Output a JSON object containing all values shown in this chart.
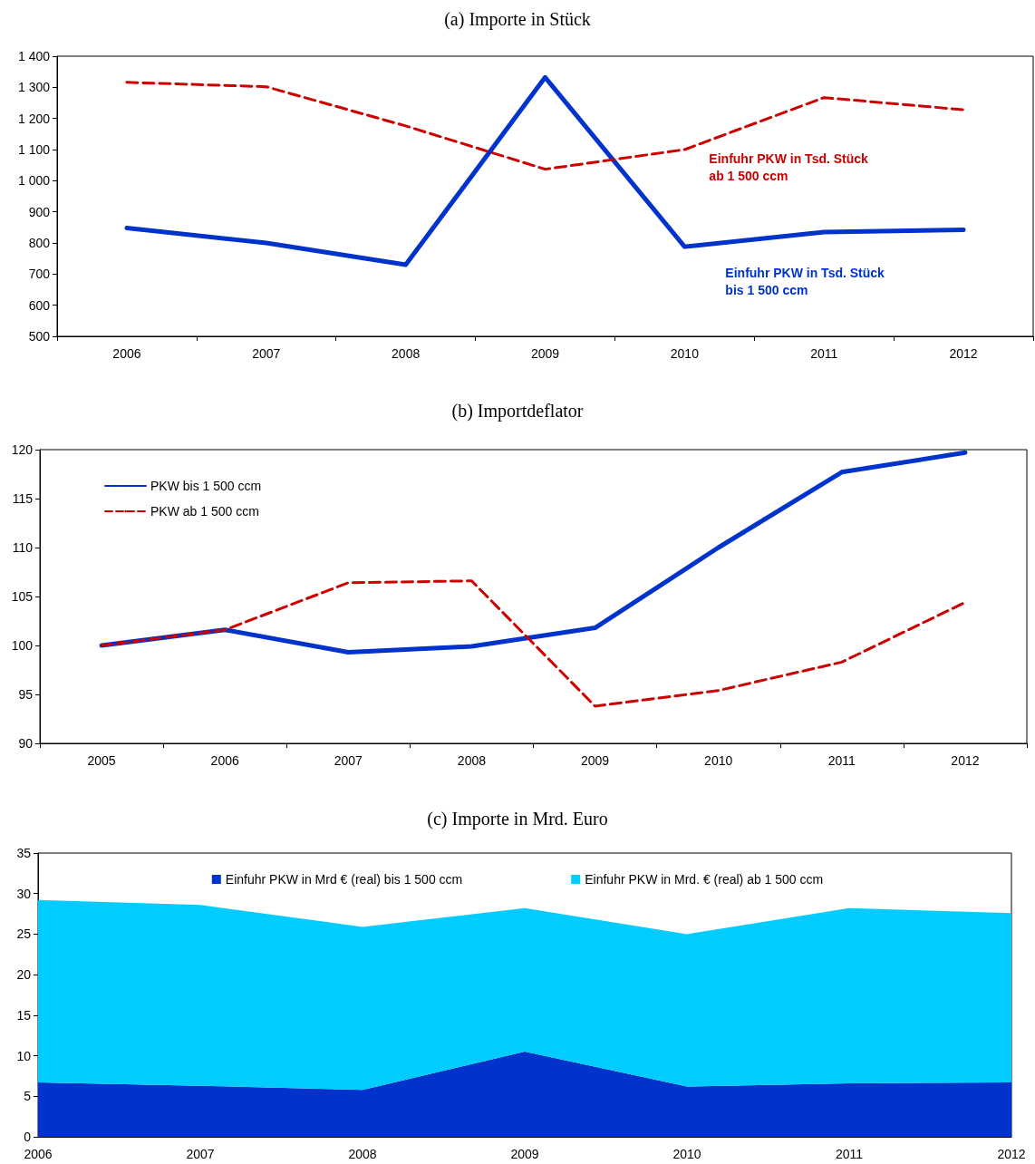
{
  "chart_data": [
    {
      "type": "line",
      "title": "(a) Importe in Stück",
      "categories": [
        "2006",
        "2007",
        "2008",
        "2009",
        "2010",
        "2011",
        "2012"
      ],
      "series": [
        {
          "name": "Einfuhr PKW in Tsd. Stück bis 1 500 ccm",
          "color": "#0033cc",
          "line_style": "solid",
          "values": [
            848,
            800,
            730,
            1332,
            788,
            835,
            842
          ]
        },
        {
          "name": "Einfuhr PKW in Tsd. Stück ab 1 500 ccm",
          "color": "#cc0000",
          "line_style": "dashed",
          "values": [
            1316,
            1302,
            1176,
            1037,
            1100,
            1267,
            1228
          ]
        }
      ],
      "ylim": [
        500,
        1400
      ],
      "yticks": [
        500,
        600,
        700,
        800,
        900,
        {
          "value": 1000,
          "label": "1 000"
        },
        {
          "value": 1100,
          "label": "1 100"
        },
        {
          "value": 1200,
          "label": "1 200"
        },
        {
          "value": 1300,
          "label": "1 300"
        },
        {
          "value": 1400,
          "label": "1 400"
        }
      ],
      "grid": false,
      "legend": false,
      "marker": "none"
    },
    {
      "type": "line",
      "title": "(b) Importdeflator",
      "categories": [
        "2005",
        "2006",
        "2007",
        "2008",
        "2009",
        "2010",
        "2011",
        "2012"
      ],
      "series": [
        {
          "name": "PKW bis 1 500 ccm",
          "color": "#0033cc",
          "line_style": "solid",
          "values": [
            100,
            101.6,
            99.3,
            99.9,
            101.8,
            110,
            117.7,
            119.7
          ]
        },
        {
          "name": "PKW ab 1 500 ccm",
          "color": "#cc0000",
          "line_style": "dashed",
          "values": [
            100,
            101.6,
            106.4,
            106.6,
            93.8,
            95.4,
            98.3,
            104.4
          ]
        }
      ],
      "ylim": [
        90,
        120
      ],
      "yticks": [
        90,
        95,
        100,
        105,
        110,
        115,
        120
      ],
      "grid": false,
      "legend": "top left",
      "marker": "none"
    },
    {
      "type": "area",
      "title": "(c) Importe in Mrd. Euro",
      "categories": [
        "2006",
        "2007",
        "2008",
        "2009",
        "2010",
        "2011",
        "2012"
      ],
      "stacked": true,
      "series": [
        {
          "name": "Einfuhr PKW in Mrd € (real) bis 1 500 ccm",
          "color": "#0033cc",
          "values": [
            6.7,
            6.3,
            5.8,
            10.5,
            6.2,
            6.6,
            6.7
          ]
        },
        {
          "name": "Einfuhr PKW in Mrd. € (real) ab 1 500 ccm",
          "color": "#00ccff",
          "values": [
            22.5,
            22.3,
            20.1,
            17.7,
            18.8,
            21.6,
            20.9
          ]
        }
      ],
      "ylim": [
        0,
        35
      ],
      "yticks": [
        0,
        5,
        10,
        15,
        20,
        25,
        30,
        35
      ],
      "grid": false,
      "legend": "top",
      "marker": "none"
    }
  ]
}
